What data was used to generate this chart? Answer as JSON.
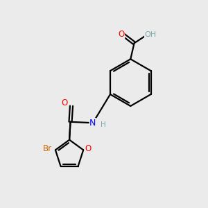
{
  "background_color": "#ebebeb",
  "bond_color": "#000000",
  "atom_colors": {
    "O": "#ff0000",
    "N": "#0000ff",
    "Br": "#cc6600",
    "H": "#7aaba8",
    "C": "#000000"
  },
  "figsize": [
    3.0,
    3.0
  ],
  "dpi": 100,
  "lw": 1.6,
  "fontsize": 8.5
}
